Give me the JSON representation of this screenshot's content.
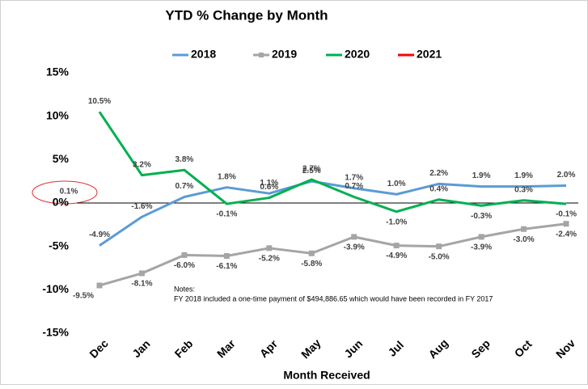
{
  "chart_data": {
    "type": "line",
    "title": "YTD % Change by Month",
    "x_label": "Month Received",
    "categories": [
      "Dec",
      "Jan",
      "Feb",
      "Mar",
      "Apr",
      "May",
      "Jun",
      "Jul",
      "Aug",
      "Sep",
      "Oct",
      "Nov"
    ],
    "ylim": [
      -15,
      15
    ],
    "yticks": [
      {
        "value": -15,
        "label": "-15%"
      },
      {
        "value": -10,
        "label": "-10%"
      },
      {
        "value": -5,
        "label": "-5%"
      },
      {
        "value": 0,
        "label": "0%"
      },
      {
        "value": 5,
        "label": "5%"
      },
      {
        "value": 10,
        "label": "10%"
      },
      {
        "value": 15,
        "label": "15%"
      }
    ],
    "legend": "top",
    "series": [
      {
        "name": "2018",
        "color": "#5b9bd5",
        "marker": "none",
        "values": [
          -4.9,
          -1.6,
          0.7,
          1.8,
          1.1,
          2.5,
          1.7,
          1.0,
          2.2,
          1.9,
          1.9,
          2.0
        ],
        "value_labels": [
          "-4.9%",
          "-1.6%",
          "0.7%",
          "1.8%",
          "1.1%",
          "2.5%",
          "1.7%",
          "1.0%",
          "2.2%",
          "1.9%",
          "1.9%",
          "2.0%"
        ]
      },
      {
        "name": "2019",
        "color": "#a5a5a5",
        "marker": "square",
        "values": [
          -9.5,
          -8.1,
          -6.0,
          -6.1,
          -5.2,
          -5.8,
          -3.9,
          -4.9,
          -5.0,
          -3.9,
          -3.0,
          -2.4
        ],
        "value_labels": [
          "-9.5%",
          "-8.1%",
          "-6.0%",
          "-6.1%",
          "-5.2%",
          "-5.8%",
          "-3.9%",
          "-4.9%",
          "-5.0%",
          "-3.9%",
          "-3.0%",
          "-2.4%"
        ]
      },
      {
        "name": "2020",
        "color": "#00b050",
        "marker": "none",
        "values": [
          10.5,
          3.2,
          3.8,
          -0.1,
          0.6,
          2.7,
          0.7,
          -1.0,
          0.4,
          -0.3,
          0.3,
          -0.1
        ],
        "value_labels": [
          "10.5%",
          "3.2%",
          "3.8%",
          "-0.1%",
          "0.6%",
          "2.7%",
          "0.7%",
          "-1.0%",
          "0.4%",
          "-0.3%",
          "0.3%",
          "-0.1%"
        ]
      },
      {
        "name": "2021",
        "color": "#ff0000",
        "marker": "none",
        "values": [
          0.1,
          null,
          null,
          null,
          null,
          null,
          null,
          null,
          null,
          null,
          null,
          null
        ],
        "value_labels": [
          "0.1%",
          null,
          null,
          null,
          null,
          null,
          null,
          null,
          null,
          null,
          null,
          null
        ]
      }
    ],
    "notes": [
      "Notes:",
      "FY 2018 included a one-time payment of $494,886.65 which would have been recorded in FY 2017"
    ]
  }
}
